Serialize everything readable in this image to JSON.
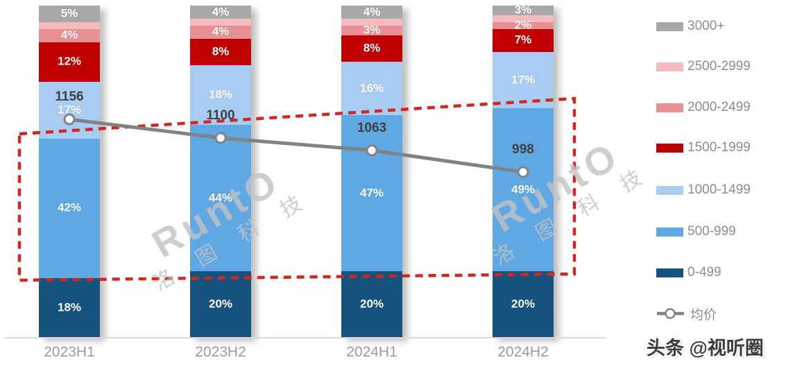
{
  "chart_data": {
    "type": "bar",
    "subtype": "stacked-100-percent",
    "title": "",
    "xlabel": "",
    "ylabel": "",
    "ylim": [
      0,
      100
    ],
    "grid": false,
    "legend_position": "right",
    "categories": [
      "2023H1",
      "2023H2",
      "2024H1",
      "2024H2"
    ],
    "series": [
      {
        "name": "0-499",
        "color": "#16527e",
        "values": [
          18,
          20,
          20,
          20
        ],
        "labels": [
          "18%",
          "20%",
          "20%",
          "20%"
        ]
      },
      {
        "name": "500-999",
        "color": "#5fa8e3",
        "values": [
          42,
          44,
          47,
          49
        ],
        "labels": [
          "42%",
          "44%",
          "47%",
          "49%"
        ]
      },
      {
        "name": "1000-1499",
        "color": "#a9cdf2",
        "values": [
          17,
          18,
          16,
          17
        ],
        "labels": [
          "17%",
          "18%",
          "16%",
          "17%"
        ]
      },
      {
        "name": "1500-1999",
        "color": "#c00000",
        "values": [
          12,
          8,
          8,
          7
        ],
        "labels": [
          "12%",
          "8%",
          "8%",
          "7%"
        ]
      },
      {
        "name": "2000-2499",
        "color": "#e89093",
        "values": [
          4,
          4,
          3,
          2
        ],
        "labels": [
          "4%",
          "4%",
          "3%",
          "2%"
        ]
      },
      {
        "name": "2500-2999",
        "color": "#f4bcbc",
        "values": [
          2,
          2,
          2,
          2
        ],
        "labels": [
          "",
          "",
          "",
          ""
        ]
      },
      {
        "name": "3000+",
        "color": "#a8a8a8",
        "values": [
          5,
          4,
          4,
          3
        ],
        "labels": [
          "5%",
          "4%",
          "4%",
          "3%"
        ]
      }
    ],
    "line_series": {
      "name": "均价",
      "values": [
        1156,
        1100,
        1063,
        998
      ],
      "labels": [
        "1156",
        "1100",
        "1063",
        "998"
      ],
      "color": "#828282",
      "marker": "open-circle"
    },
    "legend": [
      {
        "label": "3000+",
        "color": "#a8a8a8",
        "type": "swatch"
      },
      {
        "label": "2500-2999",
        "color": "#f4bcbc",
        "type": "swatch"
      },
      {
        "label": "2000-2499",
        "color": "#e89093",
        "type": "swatch"
      },
      {
        "label": "1500-1999",
        "color": "#c00000",
        "type": "swatch"
      },
      {
        "label": "1000-1499",
        "color": "#a9cdf2",
        "type": "swatch"
      },
      {
        "label": "500-999",
        "color": "#5fa8e3",
        "type": "swatch"
      },
      {
        "label": "0-499",
        "color": "#16527e",
        "type": "swatch"
      },
      {
        "label": "均价",
        "color": "#828282",
        "type": "line-marker"
      }
    ],
    "annotation": {
      "shape": "dashed-quadrilateral",
      "color": "#d0281e"
    }
  },
  "watermark": {
    "brand": "RuntO",
    "company": "洛 图 科 技"
  },
  "attribution": {
    "text": "头条 @视听圈"
  }
}
